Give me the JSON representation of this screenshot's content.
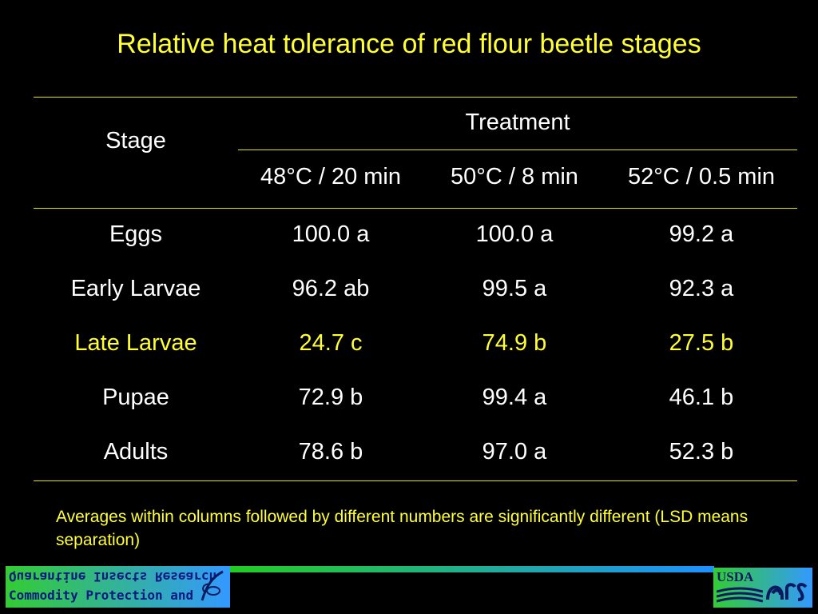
{
  "title": "Relative heat tolerance of red flour beetle stages",
  "table": {
    "stage_header": "Stage",
    "treatment_header": "Treatment",
    "columns": [
      "48°C / 20 min",
      "50°C / 8 min",
      "52°C / 0.5 min"
    ],
    "rows": [
      {
        "stage": "Eggs",
        "values": [
          "100.0 a",
          "100.0 a",
          "99.2 a"
        ],
        "highlight": false
      },
      {
        "stage": "Early Larvae",
        "values": [
          "96.2 ab",
          "99.5 a",
          "92.3 a"
        ],
        "highlight": false
      },
      {
        "stage": "Late Larvae",
        "values": [
          "24.7 c",
          "74.9 b",
          "27.5 b"
        ],
        "highlight": true
      },
      {
        "stage": "Pupae",
        "values": [
          "72.9 b",
          "99.4 a",
          "46.1 b"
        ],
        "highlight": false
      },
      {
        "stage": "Adults",
        "values": [
          "78.6 b",
          "97.0 a",
          "52.3 b"
        ],
        "highlight": false
      }
    ]
  },
  "note": "Averages within columns followed by different numbers are significantly different (LSD means separation)",
  "footer": {
    "left_logo_line1": "Quarantine Insects Research",
    "left_logo_line2": "Commodity Protection and",
    "right_logo_text": "USDA",
    "accent_color": "#ffff33"
  }
}
